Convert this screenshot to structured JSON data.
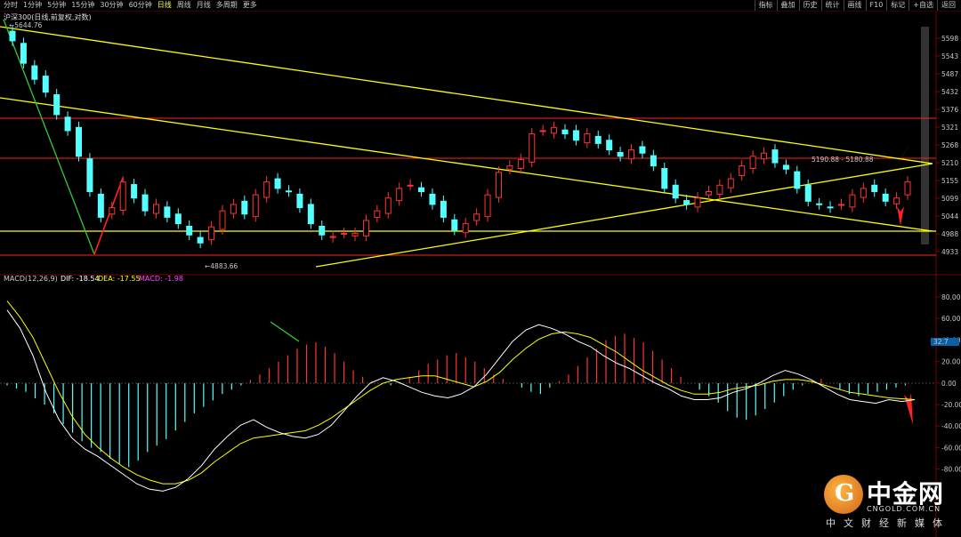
{
  "toolbar": {
    "tabs": [
      "分时",
      "1分钟",
      "5分钟",
      "15分钟",
      "30分钟",
      "60分钟",
      "日线",
      "周线",
      "月线",
      "多周期",
      "更多"
    ],
    "active_tab": "日线",
    "right_buttons": [
      "指标",
      "叠加",
      "历史",
      "统计",
      "画线",
      "F10",
      "标记",
      "+自选",
      "返回"
    ]
  },
  "chart": {
    "title": "沪深300(日线,前复权,对数)",
    "high_label": "5644.76",
    "low_label": "4883.66",
    "range_label": "5190.88 - 5180.88",
    "price_ticks": [
      "5598",
      "5543",
      "5487",
      "5432",
      "5376",
      "5321",
      "5268",
      "5210",
      "5155",
      "5099",
      "5044",
      "4988",
      "4933"
    ],
    "macd_ticks": [
      "80.00",
      "60.00",
      "40.00",
      "20.00",
      "0.00",
      "-20.00",
      "-40.00",
      "-60.00",
      "-80.00"
    ],
    "macd_marker": "32.7",
    "colors": {
      "up": "#ff3333",
      "down": "#54ffff",
      "trend": "#ffff00",
      "hline": "#ff2222",
      "dif": "#ffffff",
      "dea": "#ffff00"
    }
  },
  "macd": {
    "name": "MACD(12,26,9)",
    "dif": "DIF: -18.54",
    "dea": "DEA: -17.55",
    "macd": "MACD: -1.98"
  },
  "logo": {
    "text": "中金网",
    "url": "CNGOLD.COM.CN",
    "tagline": "中文财经新媒体",
    "icon": "gold-coin-icon"
  }
}
